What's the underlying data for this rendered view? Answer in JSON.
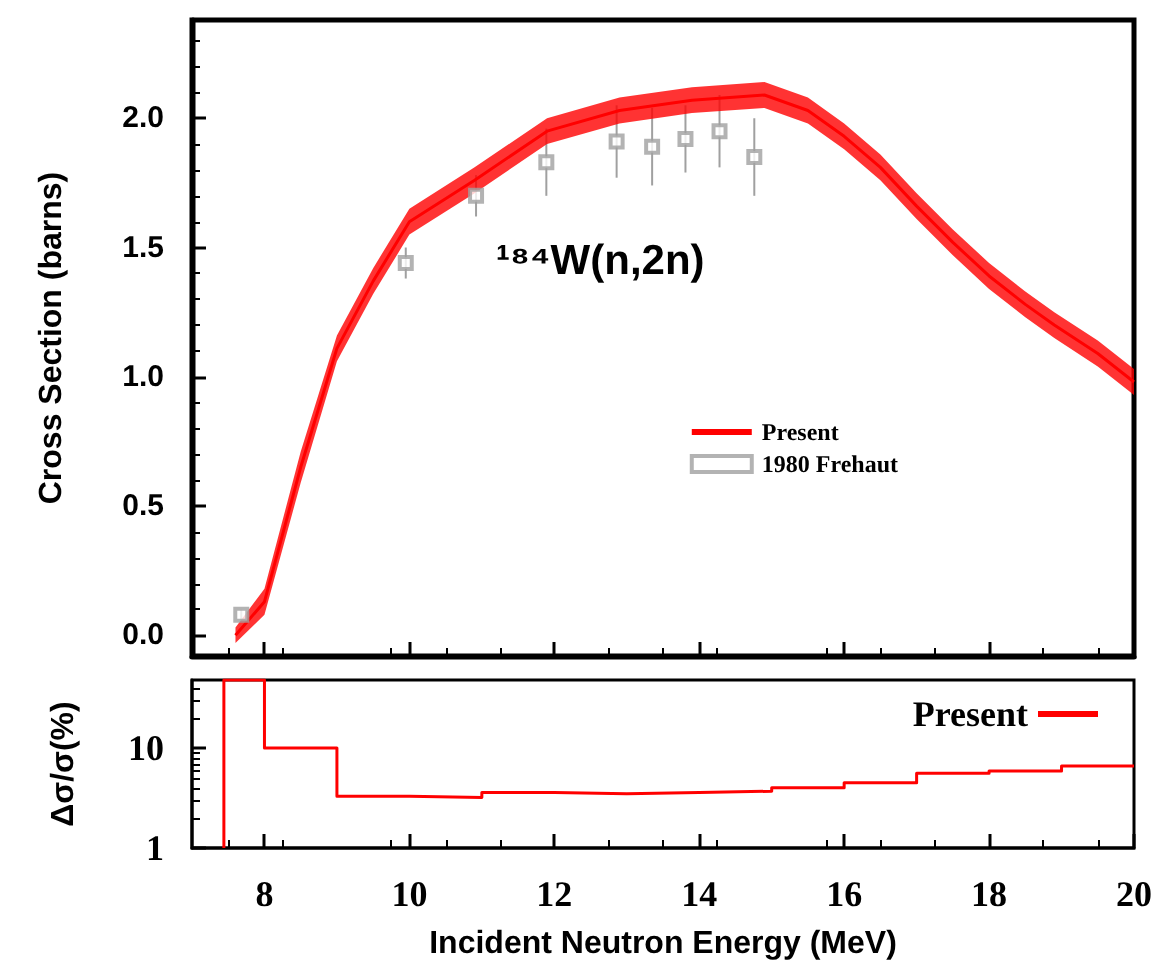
{
  "chart_data": [
    {
      "type": "line",
      "ylabel": "Cross Section (barns)",
      "annotations": [
        "¹⁸⁴W(n,2n)"
      ],
      "xlim": [
        7,
        20
      ],
      "xticks": [
        8,
        10,
        12,
        14,
        16,
        18,
        20
      ],
      "ylim": [
        -0.08,
        2.38
      ],
      "yticks": [
        {
          "value": 0,
          "label": "0.0"
        },
        0.5,
        {
          "value": 1,
          "label": "1.0"
        },
        1.5,
        {
          "value": 2,
          "label": "2.0"
        }
      ],
      "tick_labels": "y",
      "legend": "center right",
      "series": [
        {
          "name": "Present",
          "color": "#ff0000",
          "marker": "none",
          "x": [
            7.6,
            8.0,
            8.5,
            9.0,
            9.5,
            10.0,
            10.9,
            11.9,
            12.9,
            13.9,
            14.9,
            15.5,
            16.0,
            16.5,
            17.0,
            17.5,
            18.0,
            18.5,
            18.9,
            19.5,
            20.0
          ],
          "values": [
            0.0,
            0.13,
            0.65,
            1.11,
            1.37,
            1.6,
            1.76,
            1.95,
            2.03,
            2.07,
            2.09,
            2.03,
            1.93,
            1.81,
            1.66,
            1.52,
            1.39,
            1.28,
            1.2,
            1.09,
            0.98
          ],
          "lower": [
            -0.03,
            0.08,
            0.59,
            1.06,
            1.32,
            1.55,
            1.71,
            1.9,
            1.98,
            2.02,
            2.04,
            1.98,
            1.88,
            1.76,
            1.61,
            1.47,
            1.34,
            1.23,
            1.15,
            1.04,
            0.93
          ],
          "upper": [
            0.03,
            0.18,
            0.71,
            1.16,
            1.42,
            1.65,
            1.81,
            2.0,
            2.08,
            2.12,
            2.14,
            2.08,
            1.98,
            1.86,
            1.71,
            1.57,
            1.44,
            1.33,
            1.25,
            1.14,
            1.03
          ]
        },
        {
          "name": "1980 Frehaut",
          "type": "scatter",
          "color": "#a0a0a0",
          "marker": "square",
          "x": [
            7.68,
            9.95,
            10.92,
            11.89,
            12.86,
            13.35,
            13.81,
            14.28,
            14.76
          ],
          "values": [
            0.08,
            1.44,
            1.7,
            1.83,
            1.91,
            1.89,
            1.92,
            1.95,
            1.85
          ],
          "errors": [
            0.02,
            0.06,
            0.08,
            0.13,
            0.14,
            0.15,
            0.13,
            0.14,
            0.15
          ]
        }
      ]
    },
    {
      "type": "step",
      "xlabel": "Incident Neutron Energy (MeV)",
      "ylabel": "Δσ/σ(%)",
      "xlim": [
        7,
        20
      ],
      "xticks": [
        8,
        10,
        12,
        14,
        16,
        18,
        20
      ],
      "ylim": [
        1,
        48
      ],
      "yticks": [
        1,
        10
      ],
      "log": "y",
      "legend": "top right",
      "series": [
        {
          "name": "Present",
          "color": "#ff0000",
          "x": [
            7.44,
            7.44,
            8,
            9,
            10,
            11,
            12,
            13,
            14,
            15,
            16,
            17,
            18,
            19,
            20
          ],
          "values": [
            1,
            48,
            10,
            3.3,
            3.2,
            3.6,
            3.5,
            3.6,
            3.7,
            4.0,
            4.5,
            5.6,
            5.9,
            6.6,
            6.6
          ]
        }
      ]
    }
  ]
}
